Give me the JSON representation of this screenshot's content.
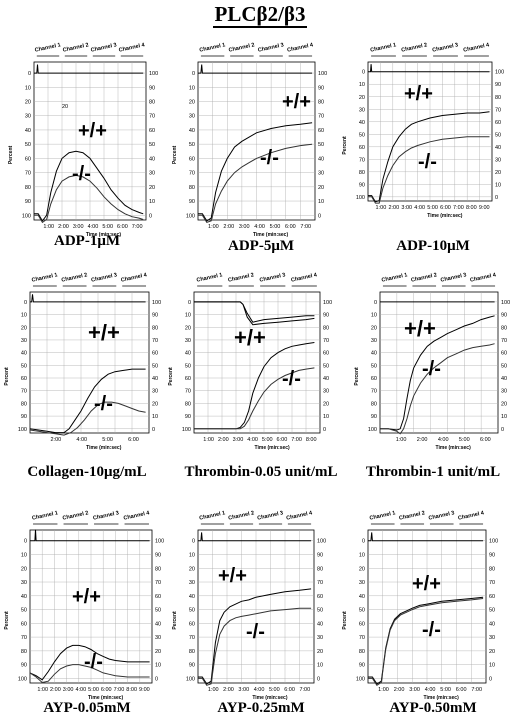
{
  "title": "PLCβ2/β3",
  "common": {
    "ylabel": "Percent",
    "xlabel": "Time (min:sec)",
    "channels": [
      "Channel 1",
      "Channel 2",
      "Channel 3",
      "Channel 4"
    ],
    "left_ticks": [
      "0",
      "10",
      "20",
      "30",
      "40",
      "50",
      "60",
      "70",
      "80",
      "90",
      "100"
    ],
    "right_ticks": [
      "100",
      "90",
      "80",
      "70",
      "60",
      "50",
      "40",
      "30",
      "20",
      "10",
      "0"
    ]
  },
  "chart_data": [
    {
      "type": "line",
      "caption": "ADP-1μM",
      "xlabel": "Time (min:sec)",
      "ylabel": "Percent",
      "xticks": [
        "1:00",
        "2:00",
        "3:00",
        "4:00",
        "5:00",
        "6:00",
        "7:00"
      ],
      "ylim": [
        0,
        100
      ],
      "annotations": [
        "20",
        "+/+",
        "-/-"
      ],
      "series": [
        {
          "label": "+/+",
          "x": [
            0,
            0.3,
            0.6,
            0.9,
            1.2,
            1.6,
            2.0,
            2.5,
            3.0,
            3.5,
            4.0,
            4.5,
            5.0,
            5.5,
            6.0,
            6.5,
            7.0,
            7.5,
            7.8
          ],
          "y": [
            99,
            99,
            104,
            100,
            84,
            69,
            60,
            56,
            55,
            56,
            60,
            67,
            74,
            82,
            88,
            93,
            96,
            98,
            99
          ]
        },
        {
          "label": "-/-",
          "x": [
            0,
            0.3,
            0.6,
            0.9,
            1.2,
            1.6,
            2.0,
            2.5,
            3.0,
            3.5,
            4.0,
            4.5,
            5.0,
            5.5,
            6.0,
            6.5,
            7.0,
            7.5,
            7.8
          ],
          "y": [
            100,
            100,
            105,
            103,
            92,
            82,
            76,
            73,
            72,
            73,
            76,
            81,
            87,
            92,
            96,
            99,
            101,
            102,
            103
          ]
        },
        {
          "label": "ch1",
          "x": [
            0,
            0.2,
            0.25,
            0.3,
            7.8
          ],
          "y": [
            0,
            0,
            -6,
            0,
            0
          ]
        }
      ]
    },
    {
      "type": "line",
      "caption": "ADP-5μM",
      "xlabel": "Time (min:sec)",
      "ylabel": "Percent",
      "xticks": [
        "1:00",
        "2:00",
        "3:00",
        "4:00",
        "5:00",
        "6:00",
        "7:00"
      ],
      "ylim": [
        0,
        100
      ],
      "annotations": [
        "+/+",
        "-/-"
      ],
      "series": [
        {
          "label": "+/+",
          "x": [
            0,
            0.3,
            0.6,
            0.9,
            1.2,
            1.6,
            2.0,
            2.5,
            3.0,
            3.5,
            4.0,
            5.0,
            6.0,
            7.0,
            7.8
          ],
          "y": [
            99,
            99,
            104,
            102,
            84,
            69,
            60,
            52,
            48,
            45,
            42,
            39,
            37,
            36,
            35
          ]
        },
        {
          "label": "-/-",
          "x": [
            0,
            0.3,
            0.6,
            0.9,
            1.2,
            1.6,
            2.0,
            2.5,
            3.0,
            3.5,
            4.0,
            5.0,
            6.0,
            7.0,
            7.8
          ],
          "y": [
            100,
            100,
            105,
            104,
            92,
            83,
            76,
            70,
            66,
            63,
            60,
            56,
            53,
            51,
            50
          ]
        },
        {
          "label": "ch1",
          "x": [
            0,
            0.2,
            0.25,
            0.3,
            7.8
          ],
          "y": [
            0,
            0,
            -6,
            0,
            0
          ]
        }
      ]
    },
    {
      "type": "line",
      "caption": "ADP-10μM",
      "xlabel": "Time (min:sec)",
      "ylabel": "Percent",
      "xticks": [
        "1:00",
        "2:00",
        "3:00",
        "4:00",
        "5:00",
        "6:00",
        "7:00",
        "8:00",
        "9:00"
      ],
      "ylim": [
        0,
        100
      ],
      "annotations": [
        "+/+",
        "-/-"
      ],
      "series": [
        {
          "label": "+/+",
          "x": [
            0,
            0.3,
            0.6,
            0.9,
            1.2,
            1.6,
            2.0,
            2.5,
            3.0,
            3.5,
            4.0,
            5.0,
            6.0,
            7.0,
            8.0,
            9.0,
            9.8
          ],
          "y": [
            99,
            99,
            104,
            103,
            86,
            72,
            60,
            52,
            46,
            42,
            40,
            37,
            35,
            34,
            33,
            33,
            32
          ]
        },
        {
          "label": "-/-",
          "x": [
            0,
            0.3,
            0.6,
            0.9,
            1.2,
            1.6,
            2.0,
            2.5,
            3.0,
            3.5,
            4.0,
            5.0,
            6.0,
            7.0,
            8.0,
            9.0,
            9.8
          ],
          "y": [
            100,
            100,
            105,
            105,
            93,
            83,
            75,
            68,
            64,
            61,
            59,
            56,
            54,
            53,
            52,
            52,
            52
          ]
        },
        {
          "label": "ch1",
          "x": [
            0,
            0.2,
            0.25,
            0.3,
            9.8
          ],
          "y": [
            0,
            0,
            -6,
            0,
            0
          ]
        }
      ]
    },
    {
      "type": "line",
      "caption": "Collagen-10μg/mL",
      "xlabel": "Time (min:sec)",
      "ylabel": "Percent",
      "xticks": [
        "2:00",
        "4:00",
        "5:00",
        "6:00"
      ],
      "ylim": [
        0,
        100
      ],
      "annotations": [
        "+/+",
        "-/-"
      ],
      "series": [
        {
          "label": "+/+",
          "x": [
            0,
            0.5,
            1.0,
            1.5,
            2.0,
            2.3,
            2.6,
            3.0,
            3.4,
            3.8,
            4.2,
            4.6,
            5.0,
            5.5,
            6.0,
            6.5,
            6.8
          ],
          "y": [
            100,
            101,
            102,
            103,
            103,
            100,
            94,
            86,
            76,
            67,
            61,
            57,
            55,
            54,
            53,
            53,
            53
          ]
        },
        {
          "label": "-/-",
          "x": [
            0,
            0.5,
            1.0,
            1.5,
            2.0,
            2.4,
            2.8,
            3.2,
            3.6,
            4.0,
            4.4,
            4.8,
            5.2,
            5.6,
            6.0,
            6.4,
            6.8
          ],
          "y": [
            101,
            102,
            103,
            104,
            105,
            103,
            99,
            93,
            86,
            81,
            79,
            79,
            80,
            82,
            84,
            86,
            87
          ]
        },
        {
          "label": "ch1",
          "x": [
            0,
            0.1,
            0.15,
            0.2,
            6.8
          ],
          "y": [
            0,
            0,
            -6,
            0,
            0
          ]
        }
      ]
    },
    {
      "type": "line",
      "caption": "Thrombin-0.05 unit/mL",
      "xlabel": "Time (min:sec)",
      "ylabel": "Percent",
      "xticks": [
        "1:00",
        "2:00",
        "3:00",
        "4:00",
        "5:00",
        "6:00",
        "7:00",
        "8:00"
      ],
      "ylim": [
        0,
        100
      ],
      "annotations": [
        "+/+",
        "-/-"
      ],
      "series": [
        {
          "label": "+/+",
          "x": [
            0,
            1,
            2,
            3,
            3.3,
            3.6,
            3.9,
            4.2,
            4.6,
            5.0,
            5.5,
            6.0,
            6.5,
            7.0,
            7.5,
            8.0,
            8.6
          ],
          "y": [
            100,
            100,
            100,
            100,
            99,
            95,
            86,
            72,
            60,
            51,
            44,
            40,
            37,
            35,
            34,
            33,
            32
          ]
        },
        {
          "label": "-/-",
          "x": [
            0,
            1,
            2,
            3,
            3.3,
            3.6,
            3.9,
            4.2,
            4.6,
            5.0,
            5.5,
            6.0,
            6.5,
            7.0,
            7.5,
            8.0,
            8.6
          ],
          "y": [
            100,
            100,
            100,
            100,
            100,
            98,
            93,
            86,
            78,
            71,
            65,
            61,
            58,
            56,
            54,
            53,
            52
          ]
        },
        {
          "label": "ch1",
          "x": [
            0,
            3.3,
            3.5,
            3.8,
            4.2,
            5,
            6,
            7,
            8,
            8.6
          ],
          "y": [
            0,
            0,
            2,
            9,
            16,
            14,
            13,
            12,
            11,
            11
          ]
        },
        {
          "label": "ch2",
          "x": [
            0,
            3.3,
            3.5,
            3.8,
            4.2,
            5,
            6,
            7,
            8,
            8.6
          ],
          "y": [
            0,
            0,
            2,
            12,
            18,
            17,
            16,
            15,
            14,
            13
          ]
        }
      ]
    },
    {
      "type": "line",
      "caption": "Thrombin-1 unit/mL",
      "xlabel": "Time (min:sec)",
      "ylabel": "Percent",
      "xticks": [
        "1:00",
        "2:00",
        "4:00",
        "5:00",
        "6:00"
      ],
      "ylim": [
        0,
        100
      ],
      "annotations": [
        "+/+",
        "-/-"
      ],
      "series": [
        {
          "label": "+/+",
          "x": [
            0,
            0.5,
            1.0,
            1.2,
            1.4,
            1.6,
            1.8,
            2.0,
            2.4,
            2.8,
            3.2,
            3.6,
            4.0,
            4.5,
            5.0,
            5.5,
            6.0,
            6.5,
            6.8
          ],
          "y": [
            100,
            100,
            101,
            100,
            92,
            76,
            62,
            52,
            42,
            35,
            31,
            28,
            25,
            22,
            19,
            17,
            14,
            12,
            11
          ]
        },
        {
          "label": "-/-",
          "x": [
            0,
            0.5,
            1.0,
            1.2,
            1.4,
            1.6,
            1.8,
            2.0,
            2.4,
            2.8,
            3.2,
            3.6,
            4.0,
            4.5,
            5.0,
            5.5,
            6.0,
            6.5,
            6.8
          ],
          "y": [
            100,
            100,
            102,
            104,
            100,
            92,
            82,
            74,
            64,
            57,
            52,
            48,
            44,
            41,
            38,
            36,
            35,
            34,
            33
          ]
        },
        {
          "label": "ch1",
          "x": [
            0,
            6.8
          ],
          "y": [
            0,
            0
          ]
        }
      ]
    },
    {
      "type": "line",
      "caption": "AYP-0.05mM",
      "xlabel": "Time (min:sec)",
      "ylabel": "Percent",
      "xticks": [
        "1:00",
        "2:00",
        "3:00",
        "4:00",
        "5:00",
        "6:00",
        "7:00",
        "8:00",
        "9:00"
      ],
      "ylim": [
        0,
        100
      ],
      "annotations": [
        "+/+",
        "-/-"
      ],
      "series": [
        {
          "label": "+/+",
          "x": [
            0,
            0.5,
            1.0,
            1.5,
            2.0,
            2.5,
            3.0,
            3.5,
            4.0,
            4.5,
            5.0,
            5.5,
            6.0,
            6.5,
            7.0,
            8.0,
            9.0,
            9.8
          ],
          "y": [
            96,
            98,
            101,
            95,
            88,
            82,
            78,
            76,
            76,
            77,
            79,
            82,
            84,
            86,
            87,
            88,
            88,
            88
          ]
        },
        {
          "label": "-/-",
          "x": [
            0,
            0.5,
            1.0,
            1.5,
            2.0,
            2.5,
            3.0,
            3.5,
            4.0,
            4.5,
            5.0,
            5.5,
            6.0,
            6.5,
            7.0,
            8.0,
            9.0,
            9.8
          ],
          "y": [
            96,
            99,
            103,
            102,
            97,
            93,
            91,
            90,
            90,
            91,
            92,
            94,
            96,
            97,
            98,
            99,
            99,
            99
          ]
        },
        {
          "label": "ch1",
          "x": [
            0,
            0.4,
            0.45,
            0.5,
            9.8
          ],
          "y": [
            0,
            0,
            -8,
            0,
            0
          ]
        }
      ]
    },
    {
      "type": "line",
      "caption": "AYP-0.25mM",
      "xlabel": "Time (min:sec)",
      "ylabel": "Percent",
      "xticks": [
        "1:00",
        "2:00",
        "3:00",
        "4:00",
        "5:00",
        "6:00",
        "7:00"
      ],
      "ylim": [
        0,
        100
      ],
      "annotations": [
        "+/+",
        "-/-"
      ],
      "series": [
        {
          "label": "+/+",
          "x": [
            0,
            0.3,
            0.6,
            0.9,
            1.2,
            1.5,
            1.8,
            2.2,
            2.6,
            3.0,
            3.5,
            4.0,
            5.0,
            6.0,
            7.0,
            7.8
          ],
          "y": [
            99,
            99,
            104,
            102,
            74,
            58,
            52,
            48,
            46,
            44,
            43,
            41,
            39,
            37,
            36,
            35
          ]
        },
        {
          "label": "-/-",
          "x": [
            0,
            0.3,
            0.6,
            0.9,
            1.2,
            1.5,
            1.8,
            2.2,
            2.6,
            3.0,
            3.5,
            4.0,
            5.0,
            6.0,
            7.0,
            7.8
          ],
          "y": [
            100,
            100,
            105,
            104,
            82,
            68,
            62,
            58,
            56,
            55,
            54,
            53,
            51,
            50,
            49,
            49
          ]
        },
        {
          "label": "ch1",
          "x": [
            0,
            0.2,
            0.25,
            0.3,
            7.8
          ],
          "y": [
            0,
            0,
            -6,
            0,
            0
          ]
        }
      ]
    },
    {
      "type": "line",
      "caption": "AYP-0.50mM",
      "xlabel": "Time (min:sec)",
      "ylabel": "Percent",
      "xticks": [
        "1:00",
        "2:00",
        "3:00",
        "4:00",
        "5:00",
        "6:00",
        "7:00"
      ],
      "ylim": [
        0,
        100
      ],
      "annotations": [
        "+/+",
        "-/-"
      ],
      "series": [
        {
          "label": "+/+",
          "x": [
            0,
            0.3,
            0.6,
            0.9,
            1.2,
            1.5,
            1.8,
            2.2,
            2.6,
            3.0,
            3.5,
            4.0,
            5.0,
            6.0,
            7.0,
            7.8
          ],
          "y": [
            99,
            99,
            104,
            102,
            78,
            64,
            57,
            53,
            51,
            49,
            47,
            46,
            44,
            43,
            42,
            41
          ]
        },
        {
          "label": "-/-",
          "x": [
            0,
            0.3,
            0.6,
            0.9,
            1.2,
            1.5,
            1.8,
            2.2,
            2.6,
            3.0,
            3.5,
            4.0,
            5.0,
            6.0,
            7.0,
            7.8
          ],
          "y": [
            100,
            100,
            105,
            103,
            79,
            65,
            58,
            54,
            52,
            50,
            48,
            47,
            45,
            44,
            43,
            42
          ]
        },
        {
          "label": "ch1",
          "x": [
            0,
            0.2,
            0.25,
            0.3,
            7.8
          ],
          "y": [
            0,
            0,
            -6,
            0,
            0
          ]
        }
      ]
    }
  ]
}
